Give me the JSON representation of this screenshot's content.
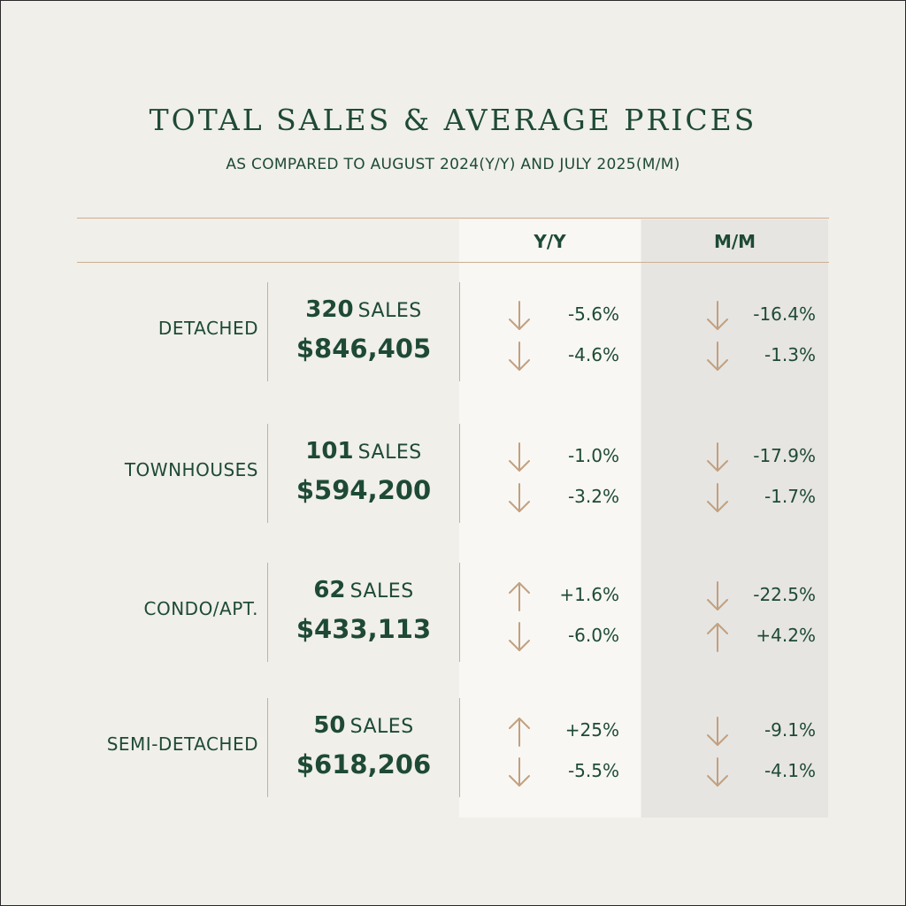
{
  "title": "TOTAL SALES & AVERAGE PRICES",
  "subtitle": "AS COMPARED TO AUGUST 2024(Y/Y) AND JULY 2025(M/M)",
  "headers": {
    "yy": "Y/Y",
    "mm": "M/M"
  },
  "sales_label": "SALES",
  "colors": {
    "text": "#1e4a35",
    "accent": "#c2a080",
    "yy_col": "#f8f7f3",
    "mm_col": "#e6e5e1",
    "bg": "#f0efea"
  },
  "rows": [
    {
      "category": "DETACHED",
      "sales": "320",
      "price": "$846,405",
      "yy_sales": {
        "dir": "down",
        "pct": "-5.6%"
      },
      "yy_price": {
        "dir": "down",
        "pct": "-4.6%"
      },
      "mm_sales": {
        "dir": "down",
        "pct": "-16.4%"
      },
      "mm_price": {
        "dir": "down",
        "pct": "-1.3%"
      }
    },
    {
      "category": "TOWNHOUSES",
      "sales": "101",
      "price": "$594,200",
      "yy_sales": {
        "dir": "down",
        "pct": "-1.0%"
      },
      "yy_price": {
        "dir": "down",
        "pct": "-3.2%"
      },
      "mm_sales": {
        "dir": "down",
        "pct": "-17.9%"
      },
      "mm_price": {
        "dir": "down",
        "pct": "-1.7%"
      }
    },
    {
      "category": "CONDO/APT.",
      "sales": "62",
      "price": "$433,113",
      "yy_sales": {
        "dir": "up",
        "pct": "+1.6%"
      },
      "yy_price": {
        "dir": "down",
        "pct": "-6.0%"
      },
      "mm_sales": {
        "dir": "down",
        "pct": "-22.5%"
      },
      "mm_price": {
        "dir": "up",
        "pct": "+4.2%"
      }
    },
    {
      "category": "SEMI-DETACHED",
      "sales": "50",
      "price": "$618,206",
      "yy_sales": {
        "dir": "up",
        "pct": "+25%"
      },
      "yy_price": {
        "dir": "down",
        "pct": "-5.5%"
      },
      "mm_sales": {
        "dir": "down",
        "pct": "-9.1%"
      },
      "mm_price": {
        "dir": "down",
        "pct": "-4.1%"
      }
    }
  ]
}
